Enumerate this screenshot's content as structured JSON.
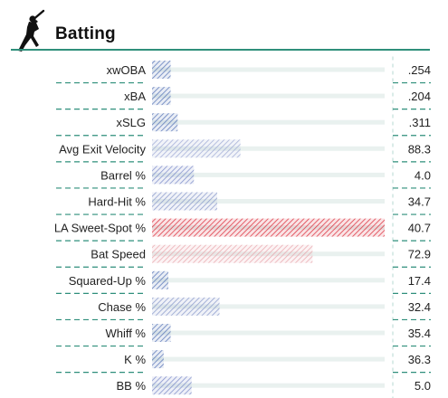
{
  "header": {
    "title": "Batting",
    "icon": "baseball-batter-icon",
    "accent_color": "#2f8f7b"
  },
  "chart_data": {
    "type": "bar",
    "orientation": "horizontal",
    "scale": "percentile",
    "xlim": [
      0,
      100
    ],
    "grid": false,
    "legend": "none",
    "metrics": [
      {
        "label": "xwOBA",
        "value": ".254",
        "percentile": 8,
        "color": "#4c6cb3"
      },
      {
        "label": "xBA",
        "value": ".204",
        "percentile": 8,
        "color": "#4c6cb3"
      },
      {
        "label": "xSLG",
        "value": ".311",
        "percentile": 11,
        "color": "#4c6cb3"
      },
      {
        "label": "Avg Exit Velocity",
        "value": "88.3",
        "percentile": 38,
        "color": "#9aa6d4"
      },
      {
        "label": "Barrel %",
        "value": "4.0",
        "percentile": 18,
        "color": "#7485c4"
      },
      {
        "label": "Hard-Hit %",
        "value": "34.7",
        "percentile": 28,
        "color": "#8293c8"
      },
      {
        "label": "LA Sweet-Spot %",
        "value": "40.7",
        "percentile": 100,
        "color": "#d8212f"
      },
      {
        "label": "Bat Speed",
        "value": "72.9",
        "percentile": 69,
        "color": "#e6a2a8"
      },
      {
        "label": "Squared-Up %",
        "value": "17.4",
        "percentile": 7,
        "color": "#4c6cb3"
      },
      {
        "label": "Chase %",
        "value": "32.4",
        "percentile": 29,
        "color": "#8293c8"
      },
      {
        "label": "Whiff %",
        "value": "35.4",
        "percentile": 8,
        "color": "#4c6cb3"
      },
      {
        "label": "K %",
        "value": "36.3",
        "percentile": 5,
        "color": "#4c6cb3"
      },
      {
        "label": "BB %",
        "value": "5.0",
        "percentile": 17,
        "color": "#7485c4"
      }
    ]
  }
}
